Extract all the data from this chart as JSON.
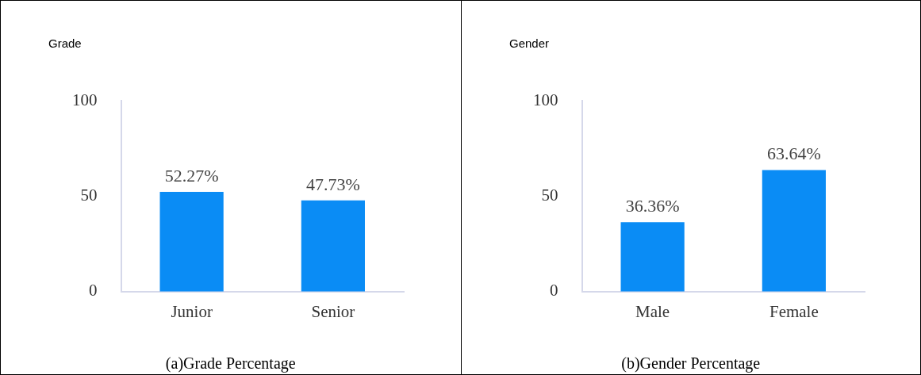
{
  "chart_data": [
    {
      "type": "bar",
      "title": "Grade",
      "categories": [
        "Junior",
        "Senior"
      ],
      "values": [
        52.27,
        47.73
      ],
      "value_labels": [
        "52.27%",
        "47.73%"
      ],
      "color": "#0a8cf5",
      "ylim": [
        0,
        100
      ],
      "yticks": [
        0,
        50,
        100
      ],
      "grid": false,
      "legend": false,
      "annotations": [
        "(a)Grade Percentage"
      ]
    },
    {
      "type": "bar",
      "title": "Gender",
      "categories": [
        "Male",
        "Female"
      ],
      "values": [
        36.36,
        63.64
      ],
      "value_labels": [
        "36.36%",
        "63.64%"
      ],
      "color": "#0a8cf5",
      "ylim": [
        0,
        100
      ],
      "yticks": [
        0,
        50,
        100
      ],
      "grid": false,
      "legend": false,
      "annotations": [
        "(b)Gender Percentage"
      ]
    }
  ]
}
